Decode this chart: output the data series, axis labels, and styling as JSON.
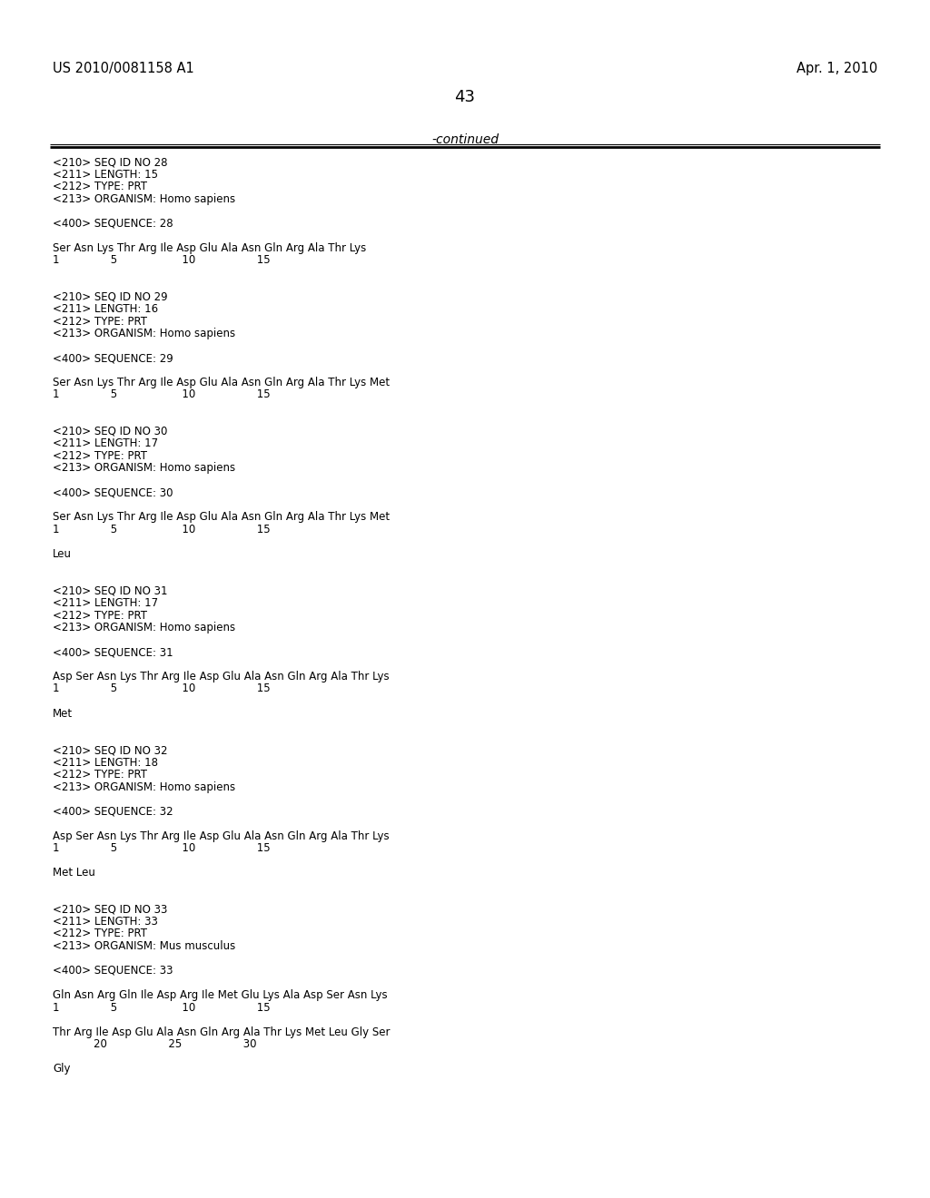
{
  "header_left": "US 2010/0081158 A1",
  "header_right": "Apr. 1, 2010",
  "page_number": "43",
  "continued_label": "-continued",
  "background_color": "#ffffff",
  "text_color": "#000000",
  "header_fontsize": 10.5,
  "page_num_fontsize": 13,
  "continued_fontsize": 10,
  "body_fontsize": 8.5,
  "body_lines": [
    "<210> SEQ ID NO 28",
    "<211> LENGTH: 15",
    "<212> TYPE: PRT",
    "<213> ORGANISM: Homo sapiens",
    "",
    "<400> SEQUENCE: 28",
    "",
    "Ser Asn Lys Thr Arg Ile Asp Glu Ala Asn Gln Arg Ala Thr Lys",
    "1               5                   10                  15",
    "",
    "",
    "<210> SEQ ID NO 29",
    "<211> LENGTH: 16",
    "<212> TYPE: PRT",
    "<213> ORGANISM: Homo sapiens",
    "",
    "<400> SEQUENCE: 29",
    "",
    "Ser Asn Lys Thr Arg Ile Asp Glu Ala Asn Gln Arg Ala Thr Lys Met",
    "1               5                   10                  15",
    "",
    "",
    "<210> SEQ ID NO 30",
    "<211> LENGTH: 17",
    "<212> TYPE: PRT",
    "<213> ORGANISM: Homo sapiens",
    "",
    "<400> SEQUENCE: 30",
    "",
    "Ser Asn Lys Thr Arg Ile Asp Glu Ala Asn Gln Arg Ala Thr Lys Met",
    "1               5                   10                  15",
    "",
    "Leu",
    "",
    "",
    "<210> SEQ ID NO 31",
    "<211> LENGTH: 17",
    "<212> TYPE: PRT",
    "<213> ORGANISM: Homo sapiens",
    "",
    "<400> SEQUENCE: 31",
    "",
    "Asp Ser Asn Lys Thr Arg Ile Asp Glu Ala Asn Gln Arg Ala Thr Lys",
    "1               5                   10                  15",
    "",
    "Met",
    "",
    "",
    "<210> SEQ ID NO 32",
    "<211> LENGTH: 18",
    "<212> TYPE: PRT",
    "<213> ORGANISM: Homo sapiens",
    "",
    "<400> SEQUENCE: 32",
    "",
    "Asp Ser Asn Lys Thr Arg Ile Asp Glu Ala Asn Gln Arg Ala Thr Lys",
    "1               5                   10                  15",
    "",
    "Met Leu",
    "",
    "",
    "<210> SEQ ID NO 33",
    "<211> LENGTH: 33",
    "<212> TYPE: PRT",
    "<213> ORGANISM: Mus musculus",
    "",
    "<400> SEQUENCE: 33",
    "",
    "Gln Asn Arg Gln Ile Asp Arg Ile Met Glu Lys Ala Asp Ser Asn Lys",
    "1               5                   10                  15",
    "",
    "Thr Arg Ile Asp Glu Ala Asn Gln Arg Ala Thr Lys Met Leu Gly Ser",
    "            20                  25                  30",
    "",
    "Gly"
  ]
}
